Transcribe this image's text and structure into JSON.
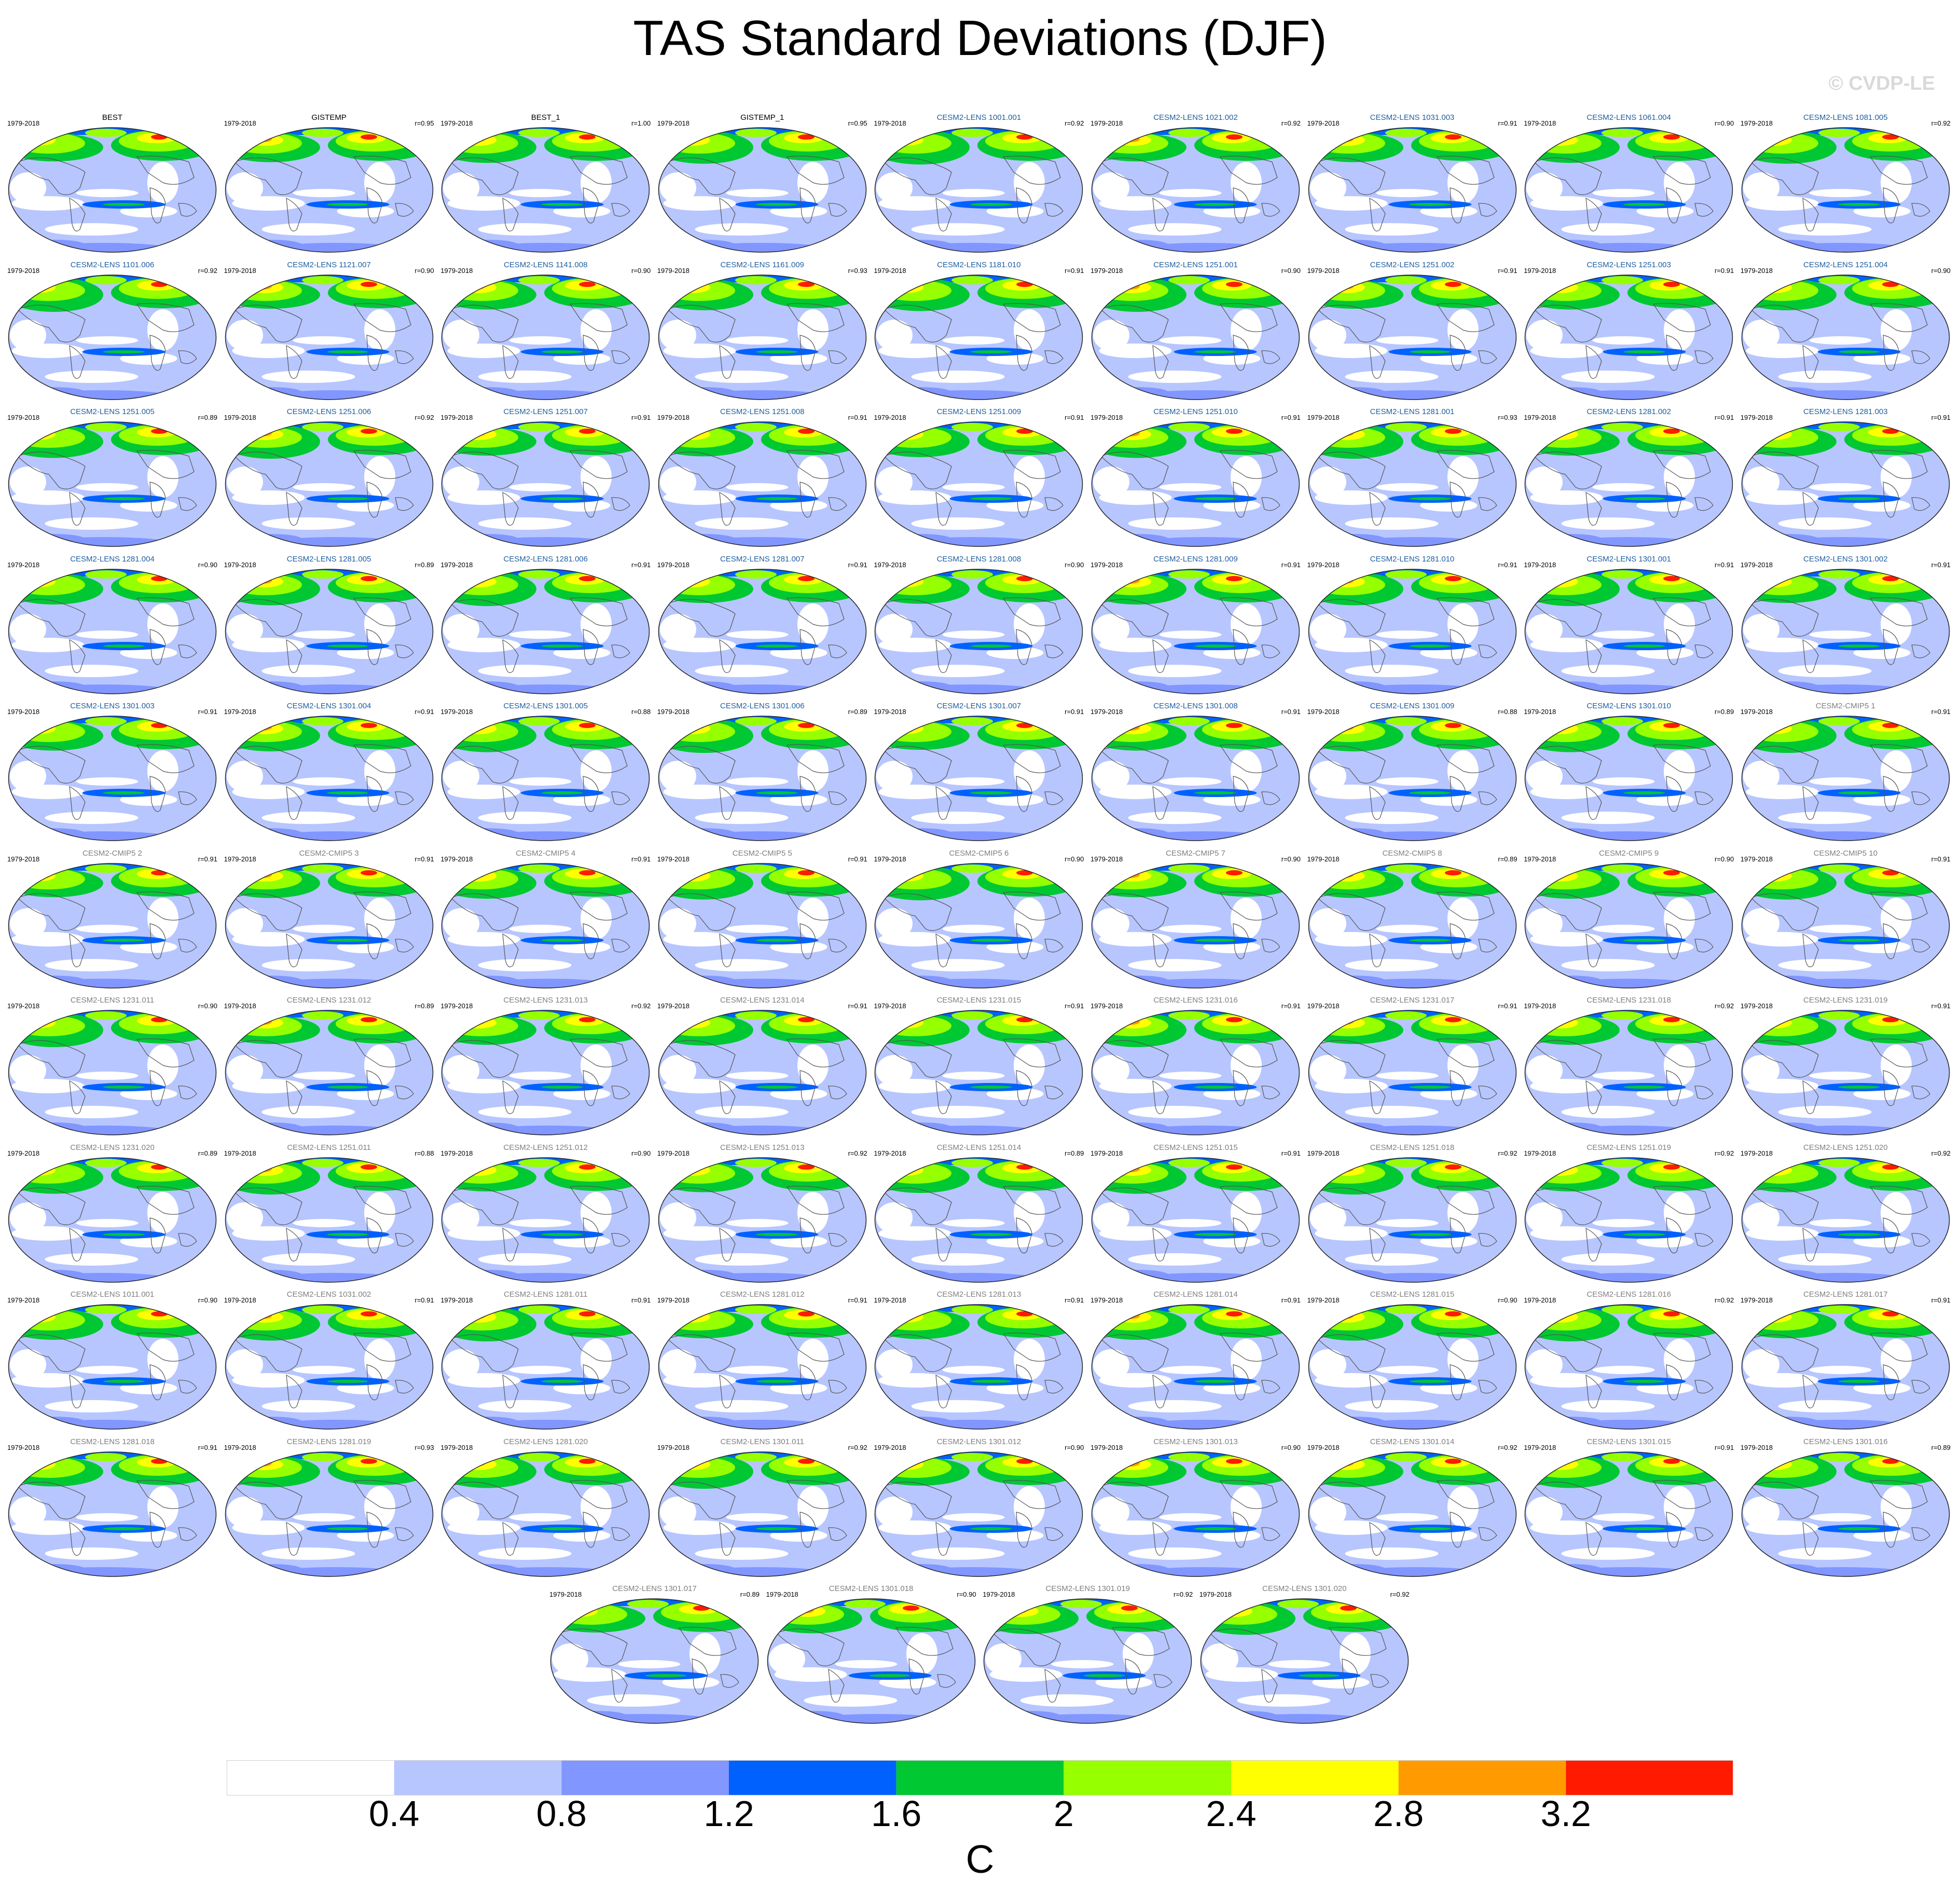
{
  "title": "TAS Standard Deviations (DJF)",
  "watermark": "© CVDP-LE",
  "units": "C",
  "colors": {
    "title_obs": "#000000",
    "title_lens": "#1f5fa0",
    "title_cmip": "#7f7f7f",
    "coast": "#555555"
  },
  "colorbar": {
    "levels": [
      "0.4",
      "0.8",
      "1.2",
      "1.6",
      "2",
      "2.4",
      "2.8",
      "3.2"
    ],
    "colors": [
      "#ffffff",
      "#b7c6ff",
      "#8196ff",
      "#0061ff",
      "#00c832",
      "#96ff00",
      "#ffff00",
      "#ff9b00",
      "#ff1a00"
    ]
  },
  "panels": [
    {
      "title": "BEST",
      "period": "1979-2018",
      "corr": "",
      "group": "obs"
    },
    {
      "title": "GISTEMP",
      "period": "1979-2018",
      "corr": "r=0.95",
      "group": "obs"
    },
    {
      "title": "BEST_1",
      "period": "1979-2018",
      "corr": "r=1.00",
      "group": "obs"
    },
    {
      "title": "GISTEMP_1",
      "period": "1979-2018",
      "corr": "r=0.95",
      "group": "obs"
    },
    {
      "title": "CESM2-LENS 1001.001",
      "period": "1979-2018",
      "corr": "r=0.92",
      "group": "lens"
    },
    {
      "title": "CESM2-LENS 1021.002",
      "period": "1979-2018",
      "corr": "r=0.92",
      "group": "lens"
    },
    {
      "title": "CESM2-LENS 1031.003",
      "period": "1979-2018",
      "corr": "r=0.91",
      "group": "lens"
    },
    {
      "title": "CESM2-LENS 1061.004",
      "period": "1979-2018",
      "corr": "r=0.90",
      "group": "lens"
    },
    {
      "title": "CESM2-LENS 1081.005",
      "period": "1979-2018",
      "corr": "r=0.92",
      "group": "lens"
    },
    {
      "title": "CESM2-LENS 1101.006",
      "period": "1979-2018",
      "corr": "r=0.92",
      "group": "lens"
    },
    {
      "title": "CESM2-LENS 1121.007",
      "period": "1979-2018",
      "corr": "r=0.90",
      "group": "lens"
    },
    {
      "title": "CESM2-LENS 1141.008",
      "period": "1979-2018",
      "corr": "r=0.90",
      "group": "lens"
    },
    {
      "title": "CESM2-LENS 1161.009",
      "period": "1979-2018",
      "corr": "r=0.93",
      "group": "lens"
    },
    {
      "title": "CESM2-LENS 1181.010",
      "period": "1979-2018",
      "corr": "r=0.91",
      "group": "lens"
    },
    {
      "title": "CESM2-LENS 1251.001",
      "period": "1979-2018",
      "corr": "r=0.90",
      "group": "lens"
    },
    {
      "title": "CESM2-LENS 1251.002",
      "period": "1979-2018",
      "corr": "r=0.91",
      "group": "lens"
    },
    {
      "title": "CESM2-LENS 1251.003",
      "period": "1979-2018",
      "corr": "r=0.91",
      "group": "lens"
    },
    {
      "title": "CESM2-LENS 1251.004",
      "period": "1979-2018",
      "corr": "r=0.90",
      "group": "lens"
    },
    {
      "title": "CESM2-LENS 1251.005",
      "period": "1979-2018",
      "corr": "r=0.89",
      "group": "lens"
    },
    {
      "title": "CESM2-LENS 1251.006",
      "period": "1979-2018",
      "corr": "r=0.92",
      "group": "lens"
    },
    {
      "title": "CESM2-LENS 1251.007",
      "period": "1979-2018",
      "corr": "r=0.91",
      "group": "lens"
    },
    {
      "title": "CESM2-LENS 1251.008",
      "period": "1979-2018",
      "corr": "r=0.91",
      "group": "lens"
    },
    {
      "title": "CESM2-LENS 1251.009",
      "period": "1979-2018",
      "corr": "r=0.91",
      "group": "lens"
    },
    {
      "title": "CESM2-LENS 1251.010",
      "period": "1979-2018",
      "corr": "r=0.91",
      "group": "lens"
    },
    {
      "title": "CESM2-LENS 1281.001",
      "period": "1979-2018",
      "corr": "r=0.93",
      "group": "lens"
    },
    {
      "title": "CESM2-LENS 1281.002",
      "period": "1979-2018",
      "corr": "r=0.91",
      "group": "lens"
    },
    {
      "title": "CESM2-LENS 1281.003",
      "period": "1979-2018",
      "corr": "r=0.91",
      "group": "lens"
    },
    {
      "title": "CESM2-LENS 1281.004",
      "period": "1979-2018",
      "corr": "r=0.90",
      "group": "lens"
    },
    {
      "title": "CESM2-LENS 1281.005",
      "period": "1979-2018",
      "corr": "r=0.89",
      "group": "lens"
    },
    {
      "title": "CESM2-LENS 1281.006",
      "period": "1979-2018",
      "corr": "r=0.91",
      "group": "lens"
    },
    {
      "title": "CESM2-LENS 1281.007",
      "period": "1979-2018",
      "corr": "r=0.91",
      "group": "lens"
    },
    {
      "title": "CESM2-LENS 1281.008",
      "period": "1979-2018",
      "corr": "r=0.90",
      "group": "lens"
    },
    {
      "title": "CESM2-LENS 1281.009",
      "period": "1979-2018",
      "corr": "r=0.91",
      "group": "lens"
    },
    {
      "title": "CESM2-LENS 1281.010",
      "period": "1979-2018",
      "corr": "r=0.91",
      "group": "lens"
    },
    {
      "title": "CESM2-LENS 1301.001",
      "period": "1979-2018",
      "corr": "r=0.91",
      "group": "lens"
    },
    {
      "title": "CESM2-LENS 1301.002",
      "period": "1979-2018",
      "corr": "r=0.91",
      "group": "lens"
    },
    {
      "title": "CESM2-LENS 1301.003",
      "period": "1979-2018",
      "corr": "r=0.91",
      "group": "lens"
    },
    {
      "title": "CESM2-LENS 1301.004",
      "period": "1979-2018",
      "corr": "r=0.91",
      "group": "lens"
    },
    {
      "title": "CESM2-LENS 1301.005",
      "period": "1979-2018",
      "corr": "r=0.88",
      "group": "lens"
    },
    {
      "title": "CESM2-LENS 1301.006",
      "period": "1979-2018",
      "corr": "r=0.89",
      "group": "lens"
    },
    {
      "title": "CESM2-LENS 1301.007",
      "period": "1979-2018",
      "corr": "r=0.91",
      "group": "lens"
    },
    {
      "title": "CESM2-LENS 1301.008",
      "period": "1979-2018",
      "corr": "r=0.91",
      "group": "lens"
    },
    {
      "title": "CESM2-LENS 1301.009",
      "period": "1979-2018",
      "corr": "r=0.88",
      "group": "lens"
    },
    {
      "title": "CESM2-LENS 1301.010",
      "period": "1979-2018",
      "corr": "r=0.89",
      "group": "lens"
    },
    {
      "title": "CESM2-CMIP5 1",
      "period": "1979-2018",
      "corr": "r=0.91",
      "group": "cmip"
    },
    {
      "title": "CESM2-CMIP5 2",
      "period": "1979-2018",
      "corr": "r=0.91",
      "group": "cmip"
    },
    {
      "title": "CESM2-CMIP5 3",
      "period": "1979-2018",
      "corr": "r=0.91",
      "group": "cmip"
    },
    {
      "title": "CESM2-CMIP5 4",
      "period": "1979-2018",
      "corr": "r=0.91",
      "group": "cmip"
    },
    {
      "title": "CESM2-CMIP5 5",
      "period": "1979-2018",
      "corr": "r=0.91",
      "group": "cmip"
    },
    {
      "title": "CESM2-CMIP5 6",
      "period": "1979-2018",
      "corr": "r=0.90",
      "group": "cmip"
    },
    {
      "title": "CESM2-CMIP5 7",
      "period": "1979-2018",
      "corr": "r=0.90",
      "group": "cmip"
    },
    {
      "title": "CESM2-CMIP5 8",
      "period": "1979-2018",
      "corr": "r=0.89",
      "group": "cmip"
    },
    {
      "title": "CESM2-CMIP5 9",
      "period": "1979-2018",
      "corr": "r=0.90",
      "group": "cmip"
    },
    {
      "title": "CESM2-CMIP5 10",
      "period": "1979-2018",
      "corr": "r=0.91",
      "group": "cmip"
    },
    {
      "title": "CESM2-LENS 1231.011",
      "period": "1979-2018",
      "corr": "r=0.90",
      "group": "cmip"
    },
    {
      "title": "CESM2-LENS 1231.012",
      "period": "1979-2018",
      "corr": "r=0.89",
      "group": "cmip"
    },
    {
      "title": "CESM2-LENS 1231.013",
      "period": "1979-2018",
      "corr": "r=0.92",
      "group": "cmip"
    },
    {
      "title": "CESM2-LENS 1231.014",
      "period": "1979-2018",
      "corr": "r=0.91",
      "group": "cmip"
    },
    {
      "title": "CESM2-LENS 1231.015",
      "period": "1979-2018",
      "corr": "r=0.91",
      "group": "cmip"
    },
    {
      "title": "CESM2-LENS 1231.016",
      "period": "1979-2018",
      "corr": "r=0.91",
      "group": "cmip"
    },
    {
      "title": "CESM2-LENS 1231.017",
      "period": "1979-2018",
      "corr": "r=0.91",
      "group": "cmip"
    },
    {
      "title": "CESM2-LENS 1231.018",
      "period": "1979-2018",
      "corr": "r=0.92",
      "group": "cmip"
    },
    {
      "title": "CESM2-LENS 1231.019",
      "period": "1979-2018",
      "corr": "r=0.91",
      "group": "cmip"
    },
    {
      "title": "CESM2-LENS 1231.020",
      "period": "1979-2018",
      "corr": "r=0.89",
      "group": "cmip"
    },
    {
      "title": "CESM2-LENS 1251.011",
      "period": "1979-2018",
      "corr": "r=0.88",
      "group": "cmip"
    },
    {
      "title": "CESM2-LENS 1251.012",
      "period": "1979-2018",
      "corr": "r=0.90",
      "group": "cmip"
    },
    {
      "title": "CESM2-LENS 1251.013",
      "period": "1979-2018",
      "corr": "r=0.92",
      "group": "cmip"
    },
    {
      "title": "CESM2-LENS 1251.014",
      "period": "1979-2018",
      "corr": "r=0.89",
      "group": "cmip"
    },
    {
      "title": "CESM2-LENS 1251.015",
      "period": "1979-2018",
      "corr": "r=0.91",
      "group": "cmip"
    },
    {
      "title": "CESM2-LENS 1251.018",
      "period": "1979-2018",
      "corr": "r=0.92",
      "group": "cmip"
    },
    {
      "title": "CESM2-LENS 1251.019",
      "period": "1979-2018",
      "corr": "r=0.92",
      "group": "cmip"
    },
    {
      "title": "CESM2-LENS 1251.020",
      "period": "1979-2018",
      "corr": "r=0.92",
      "group": "cmip"
    },
    {
      "title": "CESM2-LENS 1011.001",
      "period": "1979-2018",
      "corr": "r=0.90",
      "group": "cmip"
    },
    {
      "title": "CESM2-LENS 1031.002",
      "period": "1979-2018",
      "corr": "r=0.91",
      "group": "cmip"
    },
    {
      "title": "CESM2-LENS 1281.011",
      "period": "1979-2018",
      "corr": "r=0.91",
      "group": "cmip"
    },
    {
      "title": "CESM2-LENS 1281.012",
      "period": "1979-2018",
      "corr": "r=0.91",
      "group": "cmip"
    },
    {
      "title": "CESM2-LENS 1281.013",
      "period": "1979-2018",
      "corr": "r=0.91",
      "group": "cmip"
    },
    {
      "title": "CESM2-LENS 1281.014",
      "period": "1979-2018",
      "corr": "r=0.91",
      "group": "cmip"
    },
    {
      "title": "CESM2-LENS 1281.015",
      "period": "1979-2018",
      "corr": "r=0.90",
      "group": "cmip"
    },
    {
      "title": "CESM2-LENS 1281.016",
      "period": "1979-2018",
      "corr": "r=0.92",
      "group": "cmip"
    },
    {
      "title": "CESM2-LENS 1281.017",
      "period": "1979-2018",
      "corr": "r=0.91",
      "group": "cmip"
    },
    {
      "title": "CESM2-LENS 1281.018",
      "period": "1979-2018",
      "corr": "r=0.91",
      "group": "cmip"
    },
    {
      "title": "CESM2-LENS 1281.019",
      "period": "1979-2018",
      "corr": "r=0.93",
      "group": "cmip"
    },
    {
      "title": "CESM2-LENS 1281.020",
      "period": "1979-2018",
      "corr": "",
      "group": "cmip"
    },
    {
      "title": "CESM2-LENS 1301.011",
      "period": "1979-2018",
      "corr": "r=0.92",
      "group": "cmip"
    },
    {
      "title": "CESM2-LENS 1301.012",
      "period": "1979-2018",
      "corr": "r=0.90",
      "group": "cmip"
    },
    {
      "title": "CESM2-LENS 1301.013",
      "period": "1979-2018",
      "corr": "r=0.90",
      "group": "cmip"
    },
    {
      "title": "CESM2-LENS 1301.014",
      "period": "1979-2018",
      "corr": "r=0.92",
      "group": "cmip"
    },
    {
      "title": "CESM2-LENS 1301.015",
      "period": "1979-2018",
      "corr": "r=0.91",
      "group": "cmip"
    },
    {
      "title": "CESM2-LENS 1301.016",
      "period": "1979-2018",
      "corr": "r=0.89",
      "group": "cmip"
    },
    {
      "title": "CESM2-LENS 1301.017",
      "period": "1979-2018",
      "corr": "r=0.89",
      "group": "cmip"
    },
    {
      "title": "CESM2-LENS 1301.018",
      "period": "1979-2018",
      "corr": "r=0.90",
      "group": "cmip"
    },
    {
      "title": "CESM2-LENS 1301.019",
      "period": "1979-2018",
      "corr": "r=0.92",
      "group": "cmip"
    },
    {
      "title": "CESM2-LENS 1301.020",
      "period": "1979-2018",
      "corr": "r=0.92",
      "group": "cmip"
    }
  ]
}
